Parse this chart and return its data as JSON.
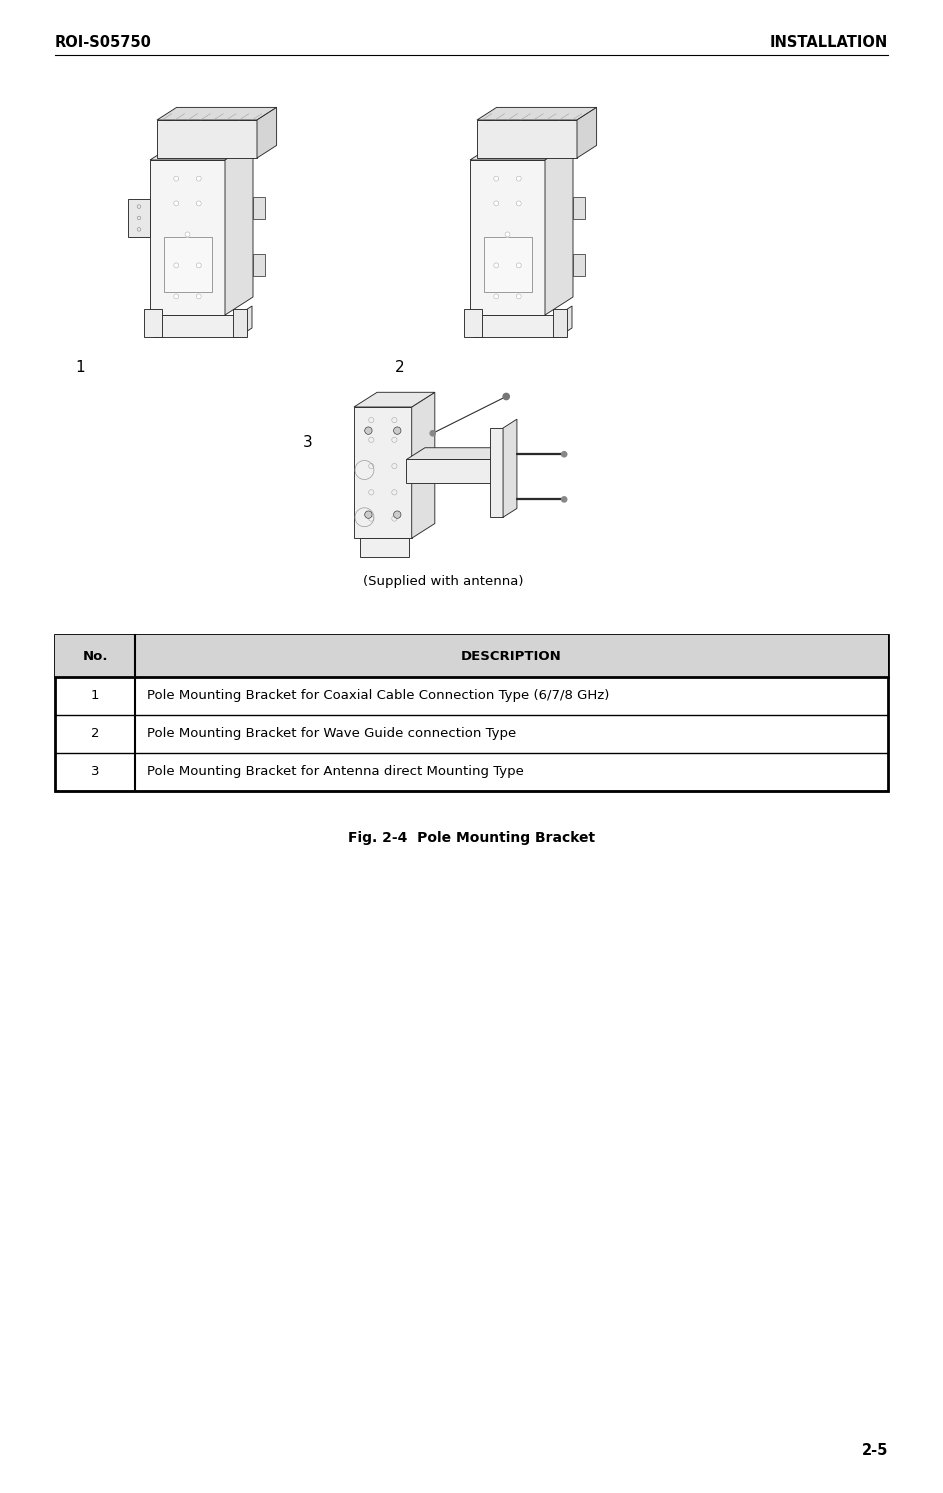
{
  "header_left": "ROI-S05750",
  "header_right": "INSTALLATION",
  "footer_right": "2-5",
  "supplied_caption": "(Supplied with antenna)",
  "figure_caption": "Fig. 2-4  Pole Mounting Bracket",
  "table_headers": [
    "No.",
    "DESCRIPTION"
  ],
  "table_rows": [
    [
      "1",
      "Pole Mounting Bracket for Coaxial Cable Connection Type (6/7/8 GHz)"
    ],
    [
      "2",
      "Pole Mounting Bracket for Wave Guide connection Type"
    ],
    [
      "3",
      "Pole Mounting Bracket for Antenna direct Mounting Type"
    ]
  ],
  "bg_color": "#ffffff",
  "text_color": "#000000",
  "header_fontsize": 10.5,
  "table_fontsize": 9.5,
  "fig_caption_fontsize": 10,
  "label_fontsize": 11,
  "page_width": 9.43,
  "page_height": 14.93
}
